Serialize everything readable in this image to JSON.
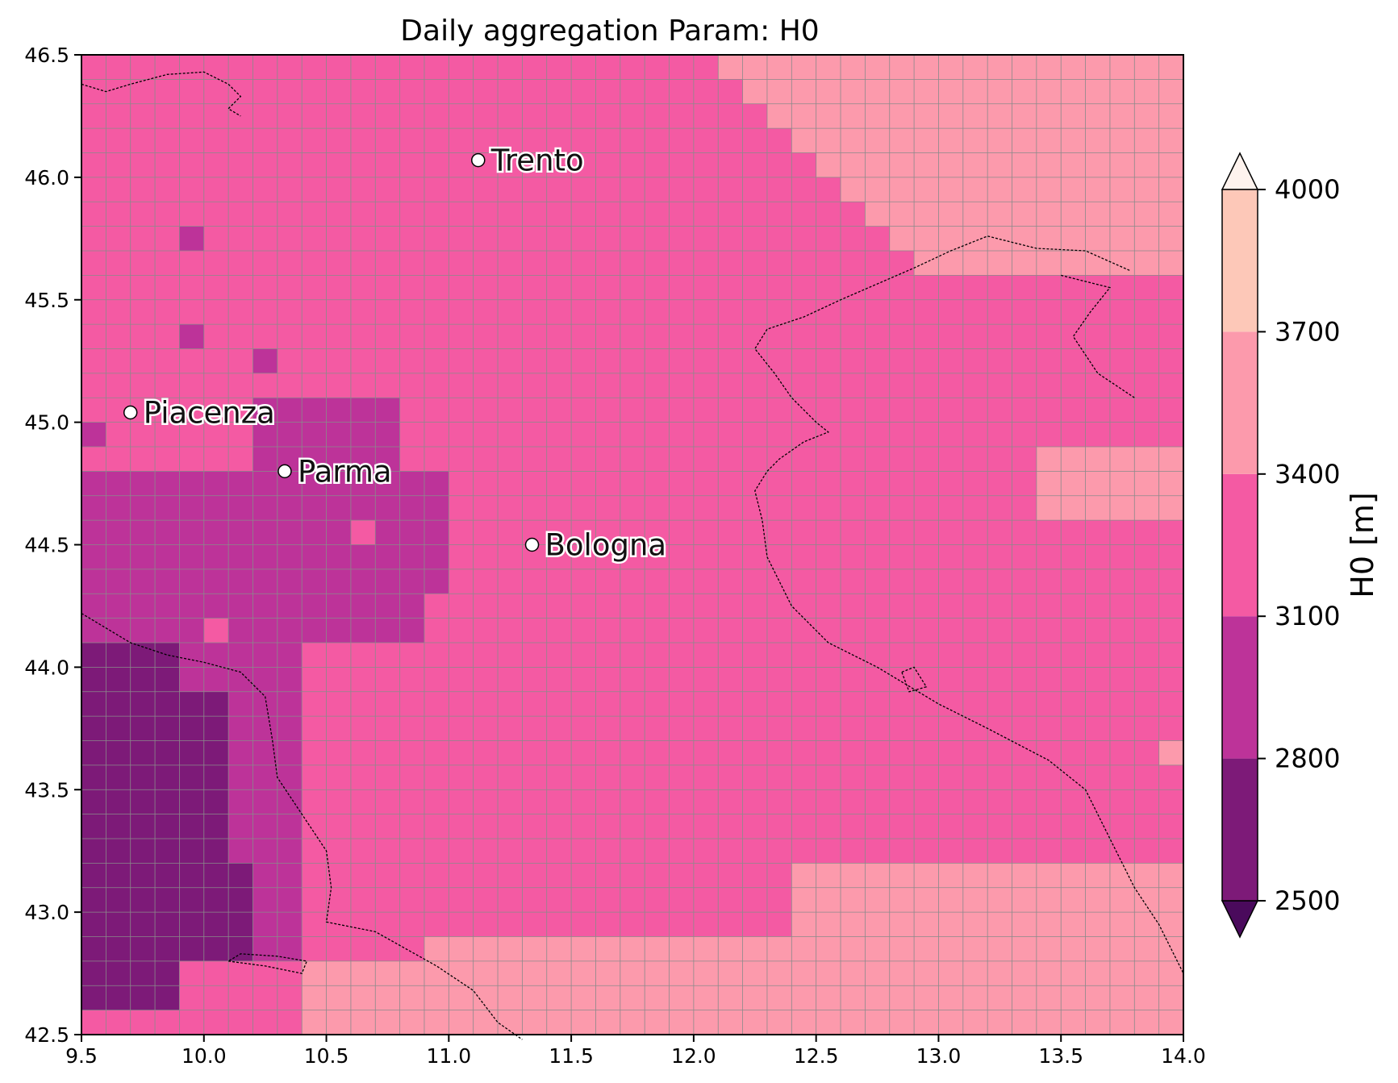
{
  "chart_data": {
    "type": "heatmap",
    "title": "Daily aggregation Param: H0",
    "xlabel": "",
    "ylabel": "",
    "xlim": [
      9.5,
      14.0
    ],
    "ylim": [
      42.5,
      46.5
    ],
    "x_ticks": [
      "9.5",
      "10.0",
      "10.5",
      "11.0",
      "11.5",
      "12.0",
      "12.5",
      "13.0",
      "13.5",
      "14.0"
    ],
    "y_ticks": [
      "42.5",
      "43.0",
      "43.5",
      "44.0",
      "44.5",
      "45.0",
      "45.5",
      "46.0",
      "46.5"
    ],
    "grid": true,
    "grid_resolution_deg": 0.1,
    "colorbar": {
      "label": "H0  [m]",
      "ticks": [
        "2500",
        "2800",
        "3100",
        "3400",
        "3700",
        "4000"
      ],
      "levels": [
        2500,
        2800,
        3100,
        3400,
        3700,
        4000
      ],
      "extend": "both",
      "colors": [
        "#4a0a5c",
        "#7d1a78",
        "#bd3399",
        "#f45aa3",
        "#fc9aac",
        "#fdc8b8",
        "#fef3ee"
      ]
    },
    "cities": [
      {
        "name": "Trento",
        "lon": 11.12,
        "lat": 46.07
      },
      {
        "name": "Piacenza",
        "lon": 9.7,
        "lat": 45.04
      },
      {
        "name": "Parma",
        "lon": 10.33,
        "lat": 44.8
      },
      {
        "name": "Bologna",
        "lon": 11.34,
        "lat": 44.5
      }
    ]
  }
}
